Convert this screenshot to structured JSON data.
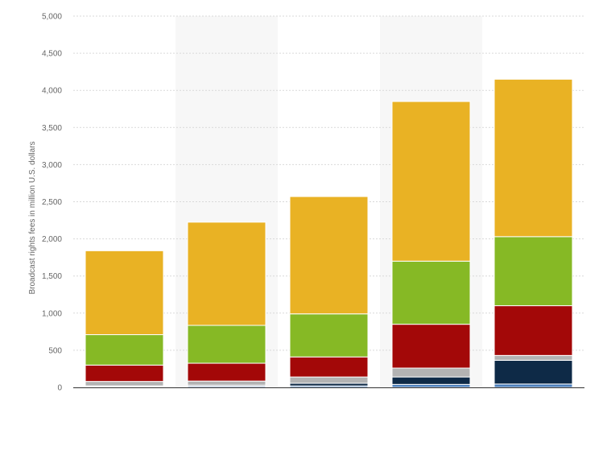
{
  "chart_data": {
    "type": "bar",
    "stacked": true,
    "title": "",
    "xlabel": "",
    "ylabel": "Broadcast rights fees in million U.S. dollars",
    "ylim": [
      0,
      5000
    ],
    "yticks": [
      0,
      500,
      1000,
      1500,
      2000,
      2500,
      3000,
      3500,
      4000,
      4500,
      5000
    ],
    "ytick_labels": [
      "0",
      "500",
      "1,000",
      "1,500",
      "2,000",
      "2,500",
      "3,000",
      "3,500",
      "4,000",
      "4,500",
      "5,000"
    ],
    "categories": [
      "",
      "",
      "",
      "",
      ""
    ],
    "grid": true,
    "legend": "none",
    "series": [
      {
        "color": "#4a7ebb",
        "values": [
          10,
          15,
          20,
          40,
          45
        ]
      },
      {
        "color": "#0e2a47",
        "values": [
          10,
          15,
          35,
          100,
          320
        ]
      },
      {
        "color": "#b3b3b3",
        "values": [
          60,
          55,
          85,
          120,
          65
        ]
      },
      {
        "color": "#a30808",
        "values": [
          220,
          240,
          270,
          590,
          670
        ]
      },
      {
        "color": "#86b925",
        "values": [
          410,
          510,
          580,
          850,
          930
        ]
      },
      {
        "color": "#e9b224",
        "values": [
          1130,
          1390,
          1580,
          2150,
          2120
        ]
      }
    ]
  }
}
